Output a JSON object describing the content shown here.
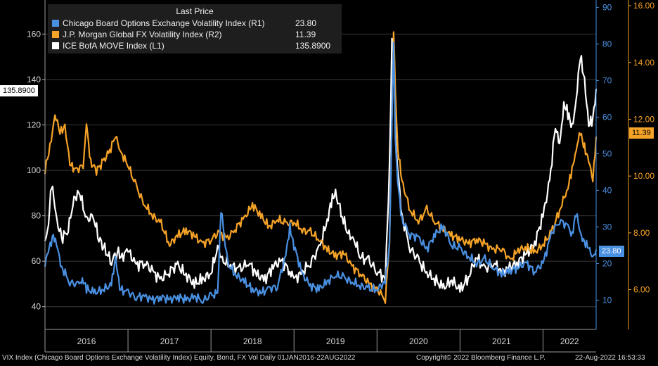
{
  "legend": {
    "title": "Last Price",
    "items": [
      {
        "name": "Chicago Board Options Exchange Volatility Index  (R1)",
        "value": "23.80",
        "color": "#4a90e2"
      },
      {
        "name": "J.P. Morgan Global FX Volatility Index  (R2)",
        "value": "11.39",
        "color": "#f5a228"
      },
      {
        "name": "ICE BofA MOVE Index  (L1)",
        "value": "135.8900",
        "color": "#ffffff"
      }
    ]
  },
  "footer": {
    "left": "VIX Index (Chicago Board Options Exchange Volatility Index) Equity, Bond, FX Vol  Daily 01JAN2016-22AUG2022",
    "copyright": "Copyright© 2022 Bloomberg Finance L.P.",
    "timestamp": "22-Aug-2022 16:53:33"
  },
  "last_flags": {
    "move": "135.8900",
    "fxvol": "11.39",
    "vix": "23.80"
  },
  "chart_data": {
    "type": "line",
    "x_labels": [
      "2016",
      "2017",
      "2018",
      "2019",
      "2020",
      "2021",
      "2022"
    ],
    "x_range": [
      2016.0,
      2022.64
    ],
    "left_axis": {
      "ticks": [
        "40",
        "60",
        "80",
        "100",
        "120",
        "140",
        "160"
      ],
      "range": [
        30,
        175
      ]
    },
    "right_axis_1": {
      "ticks": [
        "10",
        "20",
        "30",
        "40",
        "50",
        "60",
        "70",
        "80",
        "90"
      ],
      "range": [
        2,
        92
      ]
    },
    "right_axis_2": {
      "ticks": [
        "6.00",
        "8.00",
        "10.00",
        "12.00",
        "14.00",
        "16.00"
      ],
      "range": [
        4.6,
        16.2
      ]
    },
    "series": [
      {
        "name": "ICE BofA MOVE Index",
        "axis": "L1",
        "color": "#ffffff",
        "x": [
          2016.0,
          2016.03,
          2016.08,
          2016.13,
          2016.2,
          2016.28,
          2016.35,
          2016.42,
          2016.5,
          2016.58,
          2016.65,
          2016.72,
          2016.8,
          2016.87,
          2016.93,
          2017.0,
          2017.1,
          2017.2,
          2017.3,
          2017.4,
          2017.5,
          2017.6,
          2017.7,
          2017.8,
          2017.9,
          2018.0,
          2018.08,
          2018.15,
          2018.25,
          2018.35,
          2018.45,
          2018.55,
          2018.65,
          2018.75,
          2018.85,
          2018.95,
          2019.0,
          2019.1,
          2019.2,
          2019.3,
          2019.4,
          2019.45,
          2019.5,
          2019.58,
          2019.65,
          2019.72,
          2019.8,
          2019.9,
          2020.0,
          2020.1,
          2020.15,
          2020.18,
          2020.2,
          2020.22,
          2020.25,
          2020.3,
          2020.4,
          2020.5,
          2020.6,
          2020.7,
          2020.8,
          2020.9,
          2021.0,
          2021.1,
          2021.2,
          2021.3,
          2021.4,
          2021.5,
          2021.6,
          2021.7,
          2021.8,
          2021.9,
          2022.0,
          2022.08,
          2022.15,
          2022.2,
          2022.25,
          2022.3,
          2022.35,
          2022.4,
          2022.45,
          2022.5,
          2022.55,
          2022.6,
          2022.64
        ],
        "values": [
          68,
          72,
          95,
          80,
          70,
          74,
          88,
          90,
          78,
          80,
          70,
          65,
          60,
          64,
          62,
          65,
          58,
          60,
          55,
          52,
          56,
          58,
          54,
          50,
          52,
          55,
          66,
          60,
          58,
          56,
          60,
          54,
          52,
          58,
          60,
          56,
          52,
          55,
          60,
          65,
          78,
          86,
          90,
          80,
          72,
          70,
          62,
          60,
          56,
          52,
          100,
          160,
          150,
          120,
          100,
          80,
          66,
          60,
          55,
          52,
          48,
          52,
          47,
          53,
          62,
          56,
          60,
          55,
          57,
          60,
          63,
          68,
          80,
          95,
          120,
          110,
          130,
          125,
          118,
          132,
          150,
          140,
          120,
          122,
          135.89
        ]
      },
      {
        "name": "J.P. Morgan Global FX Volatility Index",
        "axis": "R2",
        "color": "#f5a228",
        "x": [
          2016.0,
          2016.06,
          2016.12,
          2016.18,
          2016.24,
          2016.3,
          2016.38,
          2016.46,
          2016.5,
          2016.55,
          2016.62,
          2016.7,
          2016.78,
          2016.85,
          2016.92,
          2017.0,
          2017.1,
          2017.2,
          2017.3,
          2017.4,
          2017.5,
          2017.6,
          2017.7,
          2017.8,
          2017.9,
          2018.0,
          2018.1,
          2018.2,
          2018.3,
          2018.4,
          2018.5,
          2018.6,
          2018.7,
          2018.8,
          2018.9,
          2019.0,
          2019.1,
          2019.2,
          2019.3,
          2019.4,
          2019.5,
          2019.6,
          2019.7,
          2019.8,
          2019.9,
          2020.0,
          2020.1,
          2020.15,
          2020.18,
          2020.2,
          2020.22,
          2020.25,
          2020.3,
          2020.4,
          2020.5,
          2020.6,
          2020.7,
          2020.8,
          2020.9,
          2021.0,
          2021.1,
          2021.2,
          2021.3,
          2021.4,
          2021.5,
          2021.6,
          2021.7,
          2021.8,
          2021.9,
          2022.0,
          2022.1,
          2022.2,
          2022.3,
          2022.35,
          2022.4,
          2022.45,
          2022.5,
          2022.55,
          2022.6,
          2022.64
        ],
        "values": [
          10.2,
          11.0,
          12.2,
          11.5,
          11.8,
          10.4,
          10.2,
          10.4,
          11.8,
          10.5,
          10.2,
          10.5,
          10.9,
          11.4,
          10.8,
          10.4,
          9.6,
          9.0,
          8.6,
          8.3,
          7.6,
          7.9,
          8.1,
          7.9,
          7.6,
          7.8,
          8.0,
          7.8,
          8.2,
          8.5,
          9.0,
          8.6,
          8.2,
          8.5,
          8.3,
          8.4,
          8.1,
          8.0,
          7.8,
          7.4,
          7.2,
          7.3,
          6.8,
          6.6,
          6.2,
          6.0,
          5.7,
          7.5,
          12.0,
          15.2,
          13.0,
          11.0,
          9.8,
          8.8,
          8.4,
          8.8,
          8.4,
          8.1,
          7.9,
          7.8,
          7.6,
          7.8,
          7.6,
          7.4,
          7.5,
          7.0,
          7.4,
          7.5,
          7.3,
          7.6,
          8.0,
          8.8,
          9.6,
          10.2,
          11.0,
          11.5,
          11.0,
          10.6,
          9.8,
          11.39
        ]
      },
      {
        "name": "Chicago Board Options Exchange Volatility Index",
        "axis": "R1",
        "color": "#4a90e2",
        "x": [
          2016.0,
          2016.05,
          2016.1,
          2016.15,
          2016.2,
          2016.3,
          2016.4,
          2016.45,
          2016.5,
          2016.6,
          2016.7,
          2016.8,
          2016.85,
          2016.9,
          2017.0,
          2017.1,
          2017.2,
          2017.3,
          2017.4,
          2017.5,
          2017.6,
          2017.7,
          2017.8,
          2017.9,
          2018.0,
          2018.08,
          2018.12,
          2018.2,
          2018.3,
          2018.4,
          2018.5,
          2018.6,
          2018.7,
          2018.8,
          2018.9,
          2018.95,
          2019.0,
          2019.1,
          2019.2,
          2019.3,
          2019.4,
          2019.5,
          2019.6,
          2019.7,
          2019.8,
          2019.9,
          2020.0,
          2020.1,
          2020.15,
          2020.18,
          2020.2,
          2020.22,
          2020.25,
          2020.3,
          2020.4,
          2020.5,
          2020.6,
          2020.7,
          2020.8,
          2020.9,
          2021.0,
          2021.1,
          2021.2,
          2021.3,
          2021.4,
          2021.5,
          2021.6,
          2021.7,
          2021.8,
          2021.9,
          2022.0,
          2022.1,
          2022.2,
          2022.3,
          2022.35,
          2022.4,
          2022.45,
          2022.5,
          2022.55,
          2022.6,
          2022.64
        ],
        "values": [
          20,
          24,
          28,
          24,
          19,
          15,
          14,
          16,
          13,
          12,
          13,
          14,
          22,
          13,
          12,
          11,
          11,
          10,
          11,
          10,
          11,
          10,
          11,
          10,
          11,
          12,
          35,
          20,
          17,
          15,
          13,
          12,
          13,
          14,
          22,
          30,
          25,
          17,
          14,
          13,
          15,
          17,
          16,
          15,
          14,
          13,
          13,
          15,
          25,
          60,
          80,
          55,
          42,
          32,
          28,
          27,
          24,
          28,
          30,
          25,
          24,
          22,
          20,
          21,
          19,
          17,
          18,
          19,
          20,
          18,
          20,
          28,
          32,
          30,
          28,
          34,
          28,
          26,
          24,
          22,
          23.8
        ]
      }
    ]
  }
}
